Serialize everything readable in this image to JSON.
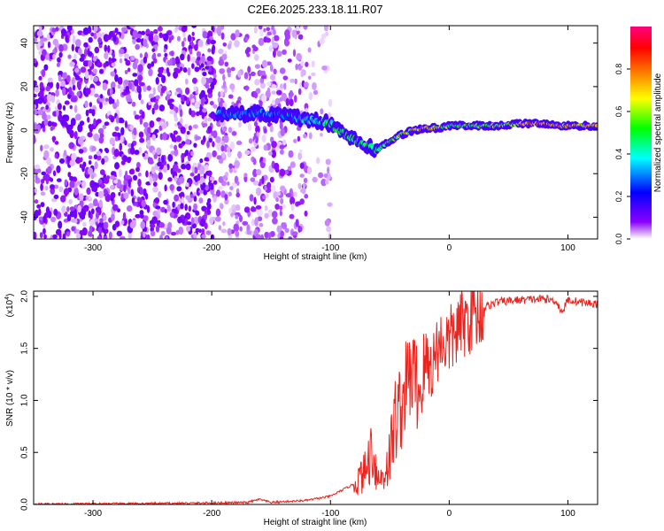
{
  "title": "C2E6.2025.233.18.11.R07",
  "chart_data": [
    {
      "type": "heatmap",
      "title": "C2E6.2025.233.18.11.R07",
      "xlabel": "Height of straight line (km)",
      "ylabel": "Frequency (Hz)",
      "xlim": [
        -350,
        125
      ],
      "ylim": [
        -50,
        48
      ],
      "xticks": [
        -300,
        -200,
        -100,
        0,
        100
      ],
      "yticks": [
        -40,
        -20,
        0,
        20,
        40
      ],
      "colorbar": {
        "label": "Normalized spectral amplitude",
        "range": [
          0,
          1
        ],
        "ticks": [
          "0.0",
          "0.2",
          "0.4",
          "0.6",
          "0.8"
        ],
        "colormap": [
          "#ffffff",
          "#8a00ff",
          "#0000ff",
          "#00ffff",
          "#00ff00",
          "#ffff00",
          "#ff7f00",
          "#ff0000",
          "#ff0080"
        ]
      },
      "ridge": {
        "x": [
          -195,
          -180,
          -160,
          -140,
          -120,
          -100,
          -85,
          -70,
          -60,
          -50,
          -40,
          -30,
          -20,
          -10,
          0,
          20,
          40,
          60,
          80,
          90,
          100,
          125
        ],
        "y": [
          8,
          7,
          8,
          7,
          5,
          3,
          -3,
          -7,
          -9,
          -5,
          -2,
          0,
          1,
          1,
          2,
          2,
          2,
          3,
          3,
          2,
          2,
          2
        ],
        "amplitude": [
          0.35,
          0.3,
          0.3,
          0.3,
          0.4,
          0.45,
          0.5,
          0.5,
          0.45,
          0.55,
          0.6,
          0.7,
          0.75,
          0.65,
          0.55,
          0.55,
          0.6,
          0.7,
          0.8,
          0.75,
          0.7,
          0.7
        ]
      }
    },
    {
      "type": "line",
      "xlabel": "Height of straight line (km)",
      "ylabel": "SNR (10 * v/v)",
      "scale_label": "(x10",
      "scale_exponent": "4",
      "ylabel_full": "SNR (10 * v/v) (x10^4)",
      "xlim": [
        -350,
        125
      ],
      "ylim": [
        0,
        2.05
      ],
      "xticks": [
        -300,
        -200,
        -100,
        0,
        100
      ],
      "yticks": [
        "0.0",
        "0.5",
        "1.0",
        "1.5",
        "2.0"
      ],
      "color": "#e8251f",
      "series": [
        {
          "name": "SNR",
          "x": [
            -350,
            -250,
            -200,
            -170,
            -160,
            -150,
            -120,
            -100,
            -80,
            -70,
            -65,
            -60,
            -55,
            -50,
            -45,
            -40,
            -35,
            -30,
            -25,
            -20,
            -15,
            -10,
            -5,
            0,
            10,
            20,
            30,
            40,
            60,
            80,
            90,
            95,
            100,
            110,
            125
          ],
          "values": [
            0.005,
            0.01,
            0.015,
            0.02,
            0.05,
            0.02,
            0.04,
            0.08,
            0.2,
            0.35,
            0.6,
            0.25,
            0.3,
            0.5,
            0.9,
            1.0,
            1.25,
            1.3,
            1.1,
            1.4,
            1.35,
            1.55,
            1.6,
            1.6,
            1.75,
            1.85,
            1.9,
            1.95,
            1.97,
            1.98,
            1.96,
            1.85,
            1.97,
            1.95,
            1.93
          ]
        }
      ]
    }
  ]
}
